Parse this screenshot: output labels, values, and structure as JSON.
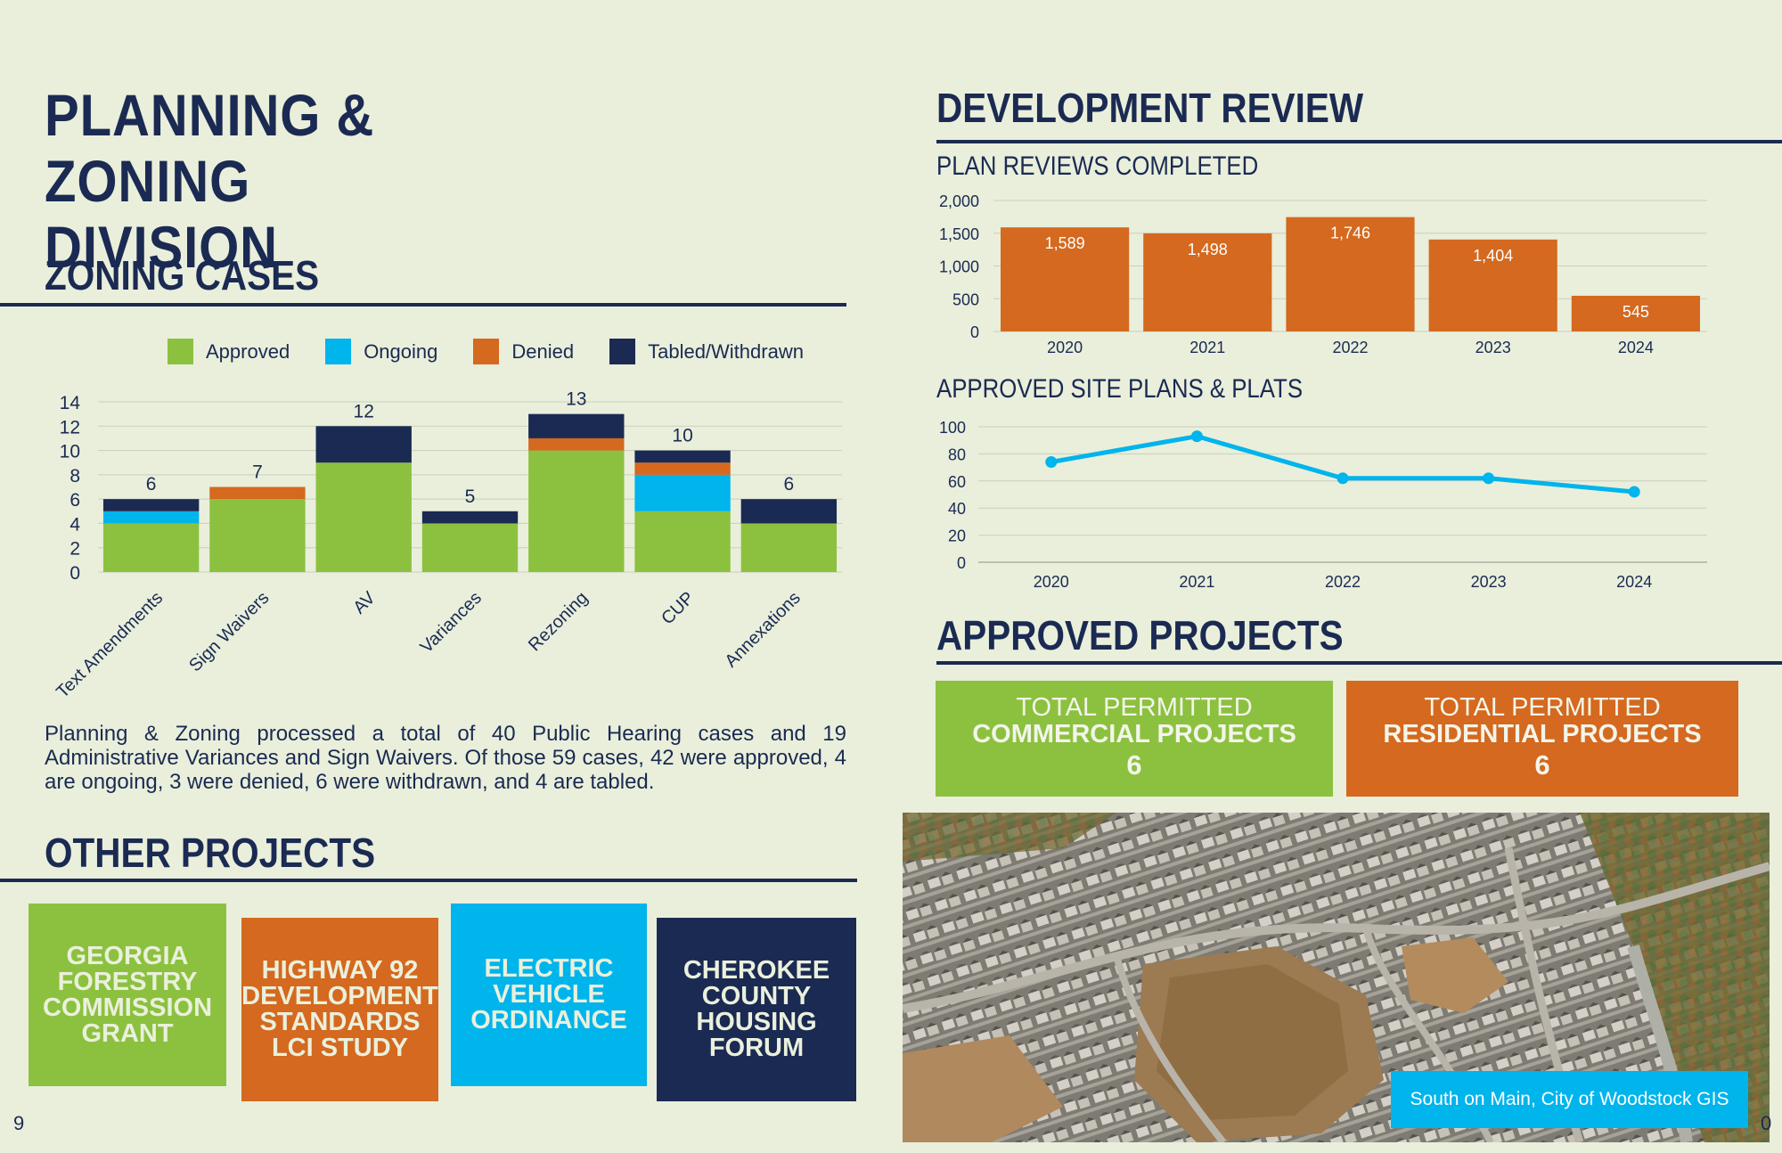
{
  "page": {
    "title_line1": "PLANNING & ZONING",
    "title_line2": "DIVISION",
    "page_number_left": "9",
    "page_number_right": "0"
  },
  "zoning": {
    "heading": "ZONING CASES",
    "summary": "Planning & Zoning processed a total of 40 Public Hearing cases and 19 Administrative Variances and Sign Waivers. Of those 59 cases, 42 were approved, 4 are ongoing, 3 were denied, 6 were withdrawn, and 4 are tabled."
  },
  "development": {
    "heading": "DEVELOPMENT REVIEW",
    "plan_reviews_title": "PLAN REVIEWS COMPLETED",
    "site_plans_title": "APPROVED SITE PLANS & PLATS"
  },
  "approved": {
    "heading": "APPROVED PROJECTS",
    "commercial": {
      "line1": "TOTAL PERMITTED",
      "line2": "COMMERCIAL PROJECTS",
      "value": "6",
      "color": "#8cc13f"
    },
    "residential": {
      "line1": "TOTAL PERMITTED",
      "line2": "RESIDENTIAL PROJECTS",
      "value": "6",
      "color": "#d4691f"
    }
  },
  "other": {
    "heading": "OTHER PROJECTS",
    "tiles": [
      {
        "label": "GEORGIA FORESTRY COMMISSION GRANT",
        "color": "#8cc13f"
      },
      {
        "label": "HIGHWAY 92 DEVELOPMENT STANDARDS LCI STUDY",
        "color": "#d4691f"
      },
      {
        "label": "ELECTRIC VEHICLE ORDINANCE",
        "color": "#00b4ec"
      },
      {
        "label": "CHEROKEE COUNTY HOUSING FORUM",
        "color": "#1b2a52"
      }
    ]
  },
  "photo": {
    "caption": "South on Main, City of Woodstock GIS"
  },
  "chart_data": [
    {
      "type": "bar",
      "stacked": true,
      "title": "",
      "categories": [
        "Text Amendments",
        "Sign Waivers",
        "AV",
        "Variances",
        "Rezoning",
        "CUP",
        "Annexations"
      ],
      "series": [
        {
          "name": "Approved",
          "color": "#8cc13f",
          "values": [
            4,
            6,
            9,
            4,
            10,
            5,
            4
          ]
        },
        {
          "name": "Ongoing",
          "color": "#00b4ec",
          "values": [
            1,
            0,
            0,
            0,
            0,
            3,
            0
          ]
        },
        {
          "name": "Denied",
          "color": "#d4691f",
          "values": [
            0,
            1,
            0,
            0,
            1,
            1,
            0
          ]
        },
        {
          "name": "Tabled/Withdrawn",
          "color": "#1b2a52",
          "values": [
            1,
            0,
            3,
            1,
            2,
            1,
            2
          ]
        }
      ],
      "totals": [
        "6",
        "7",
        "12",
        "5",
        "13",
        "10",
        "6"
      ],
      "ylim": [
        0,
        14
      ],
      "yticks": [
        "0",
        "2",
        "4",
        "6",
        "8",
        "10",
        "12",
        "14"
      ],
      "legend": "top",
      "grid": true
    },
    {
      "type": "bar",
      "title": "PLAN REVIEWS COMPLETED",
      "categories": [
        "2020",
        "2021",
        "2022",
        "2023",
        "2024"
      ],
      "values": [
        1589,
        1498,
        1746,
        1404,
        545
      ],
      "labels": [
        "1,589",
        "1,498",
        "1,746",
        "1,404",
        "545"
      ],
      "color": "#d4691f",
      "ylim": [
        0,
        2000
      ],
      "yticks": [
        "0",
        "500",
        "1,000",
        "1,500",
        "2,000"
      ],
      "grid": true
    },
    {
      "type": "line",
      "title": "APPROVED SITE PLANS & PLATS",
      "categories": [
        "2020",
        "2021",
        "2022",
        "2023",
        "2024"
      ],
      "values": [
        74,
        93,
        62,
        62,
        52
      ],
      "color": "#00b4ec",
      "ylim": [
        0,
        100
      ],
      "yticks": [
        "0",
        "20",
        "40",
        "60",
        "80",
        "100"
      ],
      "grid": true
    }
  ]
}
